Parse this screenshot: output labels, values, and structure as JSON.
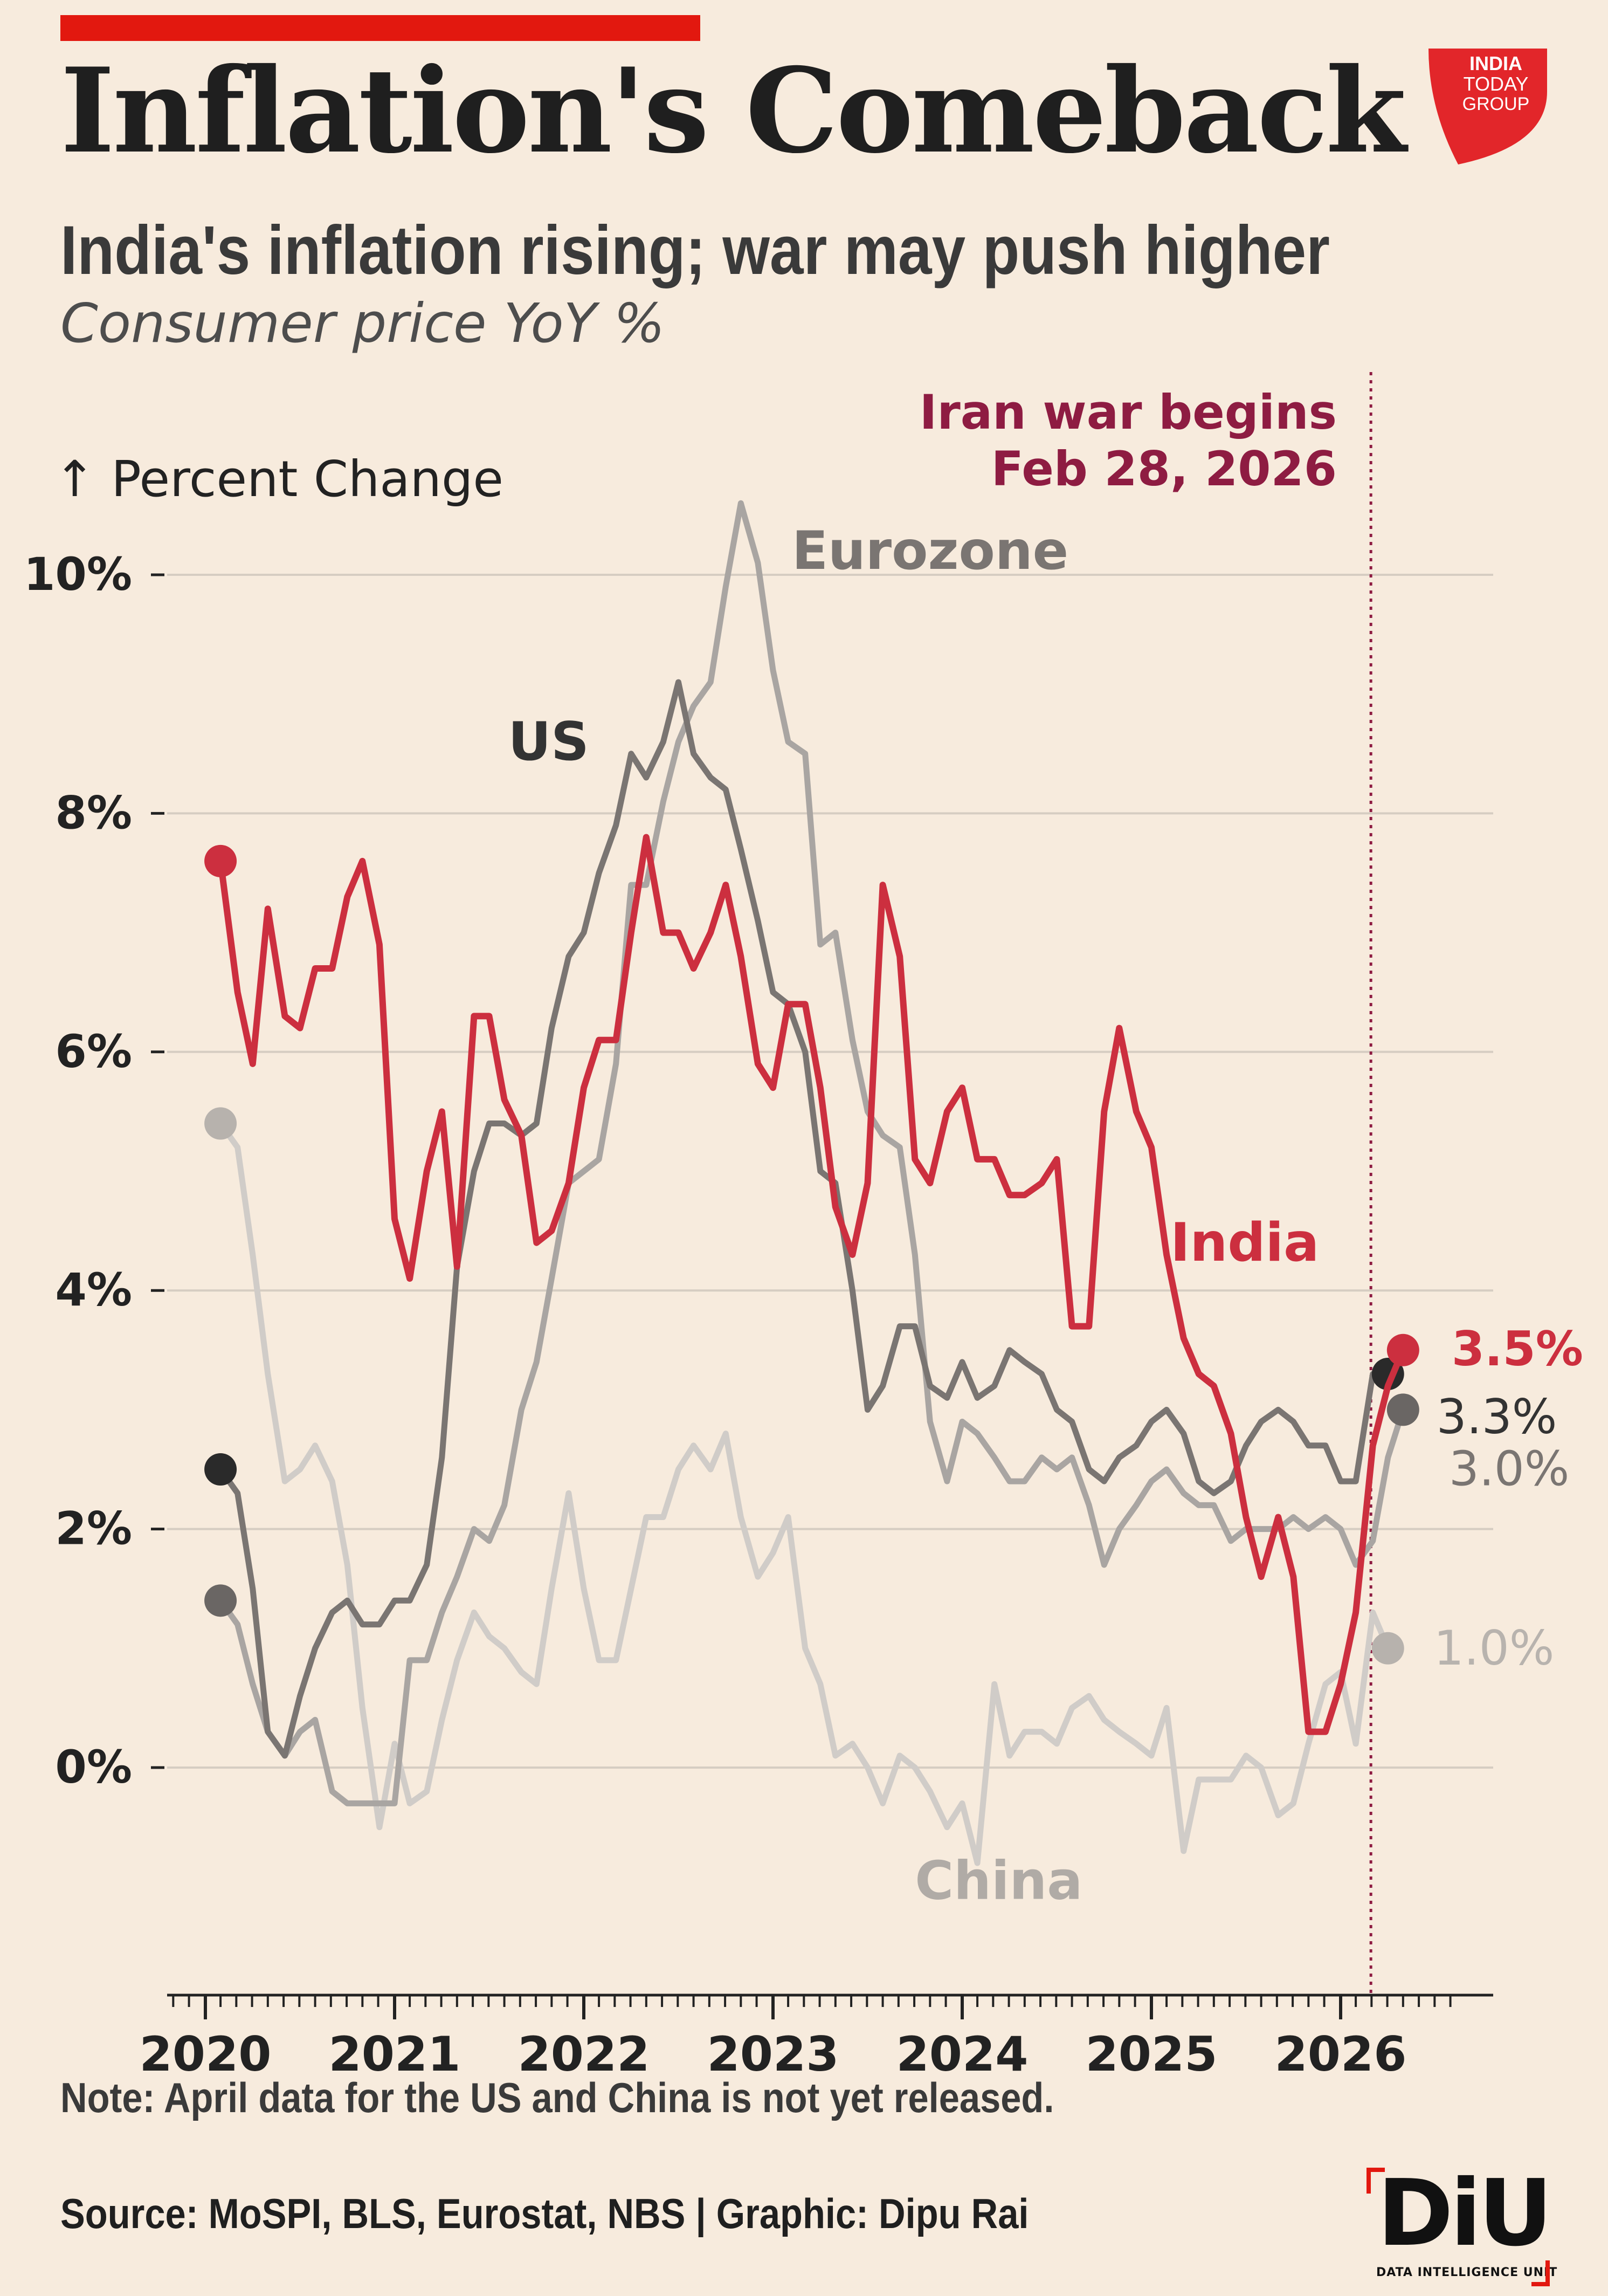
{
  "header": {
    "title": "Inflation's Comeback",
    "subtitle": "India's inflation rising; war may push higher",
    "description": "Consumer price YoY %",
    "logo_text": [
      "INDIA",
      "TODAY",
      "GROUP"
    ]
  },
  "footer": {
    "note": "Note: April data for the US and China is not yet released.",
    "source": "Source: MoSPI, BLS, Eurostat, NBS | Graphic: Dipu Rai",
    "diu_logo": "DiU",
    "diu_tagline": "DATA INTELLIGENCE UNIT"
  },
  "colors": {
    "background": "#f7ebdd",
    "accent": "#e2180f",
    "india": "#cc2f3f",
    "us": "#7a7572",
    "eurozone": "#a9a5a2",
    "china": "#d0ccc8",
    "event": "#8e1c42"
  },
  "chart_data": {
    "type": "line",
    "ylabel": "↑ Percent Change",
    "ylim": [
      -1.9,
      10.8
    ],
    "xlim": [
      2019.83,
      2026.85
    ],
    "yticks": [
      0,
      2,
      4,
      6,
      8,
      10
    ],
    "ytick_labels": [
      "0%",
      "2%",
      "4%",
      "6%",
      "8%",
      "10%"
    ],
    "xticks": [
      2020,
      2021,
      2022,
      2023,
      2024,
      2025,
      2026
    ],
    "xtick_labels": [
      "2020",
      "2021",
      "2022",
      "2023",
      "2024",
      "2025",
      "2026"
    ],
    "grid": "horizontal",
    "event": {
      "x": 2026.16,
      "label": "Iran war begins",
      "date": "Feb 28, 2026"
    },
    "series": [
      {
        "name": "China",
        "color": "#d0ccc8",
        "end_label": "1.0%",
        "x": [
          2020.08,
          2020.17,
          2020.25,
          2020.33,
          2020.42,
          2020.5,
          2020.58,
          2020.67,
          2020.75,
          2020.83,
          2020.92,
          2021.0,
          2021.08,
          2021.17,
          2021.25,
          2021.33,
          2021.42,
          2021.5,
          2021.58,
          2021.67,
          2021.75,
          2021.83,
          2021.92,
          2022.0,
          2022.08,
          2022.17,
          2022.25,
          2022.33,
          2022.42,
          2022.5,
          2022.58,
          2022.67,
          2022.75,
          2022.83,
          2022.92,
          2023.0,
          2023.08,
          2023.17,
          2023.25,
          2023.33,
          2023.42,
          2023.5,
          2023.58,
          2023.67,
          2023.75,
          2023.83,
          2023.92,
          2024.0,
          2024.08,
          2024.17,
          2024.25,
          2024.33,
          2024.42,
          2024.5,
          2024.58,
          2024.67,
          2024.75,
          2024.83,
          2024.92,
          2025.0,
          2025.08,
          2025.17,
          2025.25,
          2025.33,
          2025.42,
          2025.5,
          2025.58,
          2025.67,
          2025.75,
          2025.83,
          2025.92,
          2026.0,
          2026.08,
          2026.17,
          2026.25
        ],
        "y": [
          5.4,
          5.2,
          4.3,
          3.3,
          2.4,
          2.5,
          2.7,
          2.4,
          1.7,
          0.5,
          -0.5,
          0.2,
          -0.3,
          -0.2,
          0.4,
          0.9,
          1.3,
          1.1,
          1.0,
          0.8,
          0.7,
          1.5,
          2.3,
          1.5,
          0.9,
          0.9,
          1.5,
          2.1,
          2.1,
          2.5,
          2.7,
          2.5,
          2.8,
          2.1,
          1.6,
          1.8,
          2.1,
          1.0,
          0.7,
          0.1,
          0.2,
          0.0,
          -0.3,
          0.1,
          0.0,
          -0.2,
          -0.5,
          -0.3,
          -0.8,
          0.7,
          0.1,
          0.3,
          0.3,
          0.2,
          0.5,
          0.6,
          0.4,
          0.3,
          0.2,
          0.1,
          0.5,
          -0.7,
          -0.1,
          -0.1,
          -0.1,
          0.1,
          0.0,
          -0.4,
          -0.3,
          0.2,
          0.7,
          0.8,
          0.2,
          1.3,
          1.0
        ]
      },
      {
        "name": "Eurozone",
        "color": "#a9a5a2",
        "end_label": "3.0%",
        "x": [
          2020.08,
          2020.17,
          2020.25,
          2020.33,
          2020.42,
          2020.5,
          2020.58,
          2020.67,
          2020.75,
          2020.83,
          2020.92,
          2021.0,
          2021.08,
          2021.17,
          2021.25,
          2021.33,
          2021.42,
          2021.5,
          2021.58,
          2021.67,
          2021.75,
          2021.83,
          2021.92,
          2022.0,
          2022.08,
          2022.17,
          2022.25,
          2022.33,
          2022.42,
          2022.5,
          2022.58,
          2022.67,
          2022.75,
          2022.83,
          2022.92,
          2023.0,
          2023.08,
          2023.17,
          2023.25,
          2023.33,
          2023.42,
          2023.5,
          2023.58,
          2023.67,
          2023.75,
          2023.83,
          2023.92,
          2024.0,
          2024.08,
          2024.17,
          2024.25,
          2024.33,
          2024.42,
          2024.5,
          2024.58,
          2024.67,
          2024.75,
          2024.83,
          2024.92,
          2025.0,
          2025.08,
          2025.17,
          2025.25,
          2025.33,
          2025.42,
          2025.5,
          2025.58,
          2025.67,
          2025.75,
          2025.83,
          2025.92,
          2026.0,
          2026.08,
          2026.17,
          2026.25,
          2026.33
        ],
        "y": [
          1.4,
          1.2,
          0.7,
          0.3,
          0.1,
          0.3,
          0.4,
          -0.2,
          -0.3,
          -0.3,
          -0.3,
          -0.3,
          0.9,
          0.9,
          1.3,
          1.6,
          2.0,
          1.9,
          2.2,
          3.0,
          3.4,
          4.1,
          4.9,
          5.0,
          5.1,
          5.9,
          7.4,
          7.4,
          8.1,
          8.6,
          8.9,
          9.1,
          9.9,
          10.6,
          10.1,
          9.2,
          8.6,
          8.5,
          6.9,
          7.0,
          6.1,
          5.5,
          5.3,
          5.2,
          4.3,
          2.9,
          2.4,
          2.9,
          2.8,
          2.6,
          2.4,
          2.4,
          2.6,
          2.5,
          2.6,
          2.2,
          1.7,
          2.0,
          2.2,
          2.4,
          2.5,
          2.3,
          2.2,
          2.2,
          1.9,
          2.0,
          2.0,
          2.0,
          2.1,
          2.0,
          2.1,
          2.0,
          1.7,
          1.9,
          2.6,
          3.0
        ]
      },
      {
        "name": "US",
        "color": "#7a7572",
        "end_label": "3.3%",
        "x": [
          2020.08,
          2020.17,
          2020.25,
          2020.33,
          2020.42,
          2020.5,
          2020.58,
          2020.67,
          2020.75,
          2020.83,
          2020.92,
          2021.0,
          2021.08,
          2021.17,
          2021.25,
          2021.33,
          2021.42,
          2021.5,
          2021.58,
          2021.67,
          2021.75,
          2021.83,
          2021.92,
          2022.0,
          2022.08,
          2022.17,
          2022.25,
          2022.33,
          2022.42,
          2022.5,
          2022.58,
          2022.67,
          2022.75,
          2022.83,
          2022.92,
          2023.0,
          2023.08,
          2023.17,
          2023.25,
          2023.33,
          2023.42,
          2023.5,
          2023.58,
          2023.67,
          2023.75,
          2023.83,
          2023.92,
          2024.0,
          2024.08,
          2024.17,
          2024.25,
          2024.33,
          2024.42,
          2024.5,
          2024.58,
          2024.67,
          2024.75,
          2024.83,
          2024.92,
          2025.0,
          2025.08,
          2025.17,
          2025.25,
          2025.33,
          2025.42,
          2025.5,
          2025.58,
          2025.67,
          2025.75,
          2025.83,
          2025.92,
          2026.0,
          2026.08,
          2026.17,
          2026.25
        ],
        "y": [
          2.5,
          2.3,
          1.5,
          0.3,
          0.1,
          0.6,
          1.0,
          1.3,
          1.4,
          1.2,
          1.2,
          1.4,
          1.4,
          1.7,
          2.6,
          4.2,
          5.0,
          5.4,
          5.4,
          5.3,
          5.4,
          6.2,
          6.8,
          7.0,
          7.5,
          7.9,
          8.5,
          8.3,
          8.6,
          9.1,
          8.5,
          8.3,
          8.2,
          7.7,
          7.1,
          6.5,
          6.4,
          6.0,
          5.0,
          4.9,
          4.0,
          3.0,
          3.2,
          3.7,
          3.7,
          3.2,
          3.1,
          3.4,
          3.1,
          3.2,
          3.5,
          3.4,
          3.3,
          3.0,
          2.9,
          2.5,
          2.4,
          2.6,
          2.7,
          2.9,
          3.0,
          2.8,
          2.4,
          2.3,
          2.4,
          2.7,
          2.9,
          3.0,
          2.9,
          2.7,
          2.7,
          2.4,
          2.4,
          3.3,
          3.3
        ]
      },
      {
        "name": "India",
        "color": "#cc2f3f",
        "end_label": "3.5%",
        "x": [
          2020.08,
          2020.17,
          2020.25,
          2020.33,
          2020.42,
          2020.5,
          2020.58,
          2020.67,
          2020.75,
          2020.83,
          2020.92,
          2021.0,
          2021.08,
          2021.17,
          2021.25,
          2021.33,
          2021.42,
          2021.5,
          2021.58,
          2021.67,
          2021.75,
          2021.83,
          2021.92,
          2022.0,
          2022.08,
          2022.17,
          2022.25,
          2022.33,
          2022.42,
          2022.5,
          2022.58,
          2022.67,
          2022.75,
          2022.83,
          2022.92,
          2023.0,
          2023.08,
          2023.17,
          2023.25,
          2023.33,
          2023.42,
          2023.5,
          2023.58,
          2023.67,
          2023.75,
          2023.83,
          2023.92,
          2024.0,
          2024.08,
          2024.17,
          2024.25,
          2024.33,
          2024.42,
          2024.5,
          2024.58,
          2024.67,
          2024.75,
          2024.83,
          2024.92,
          2025.0,
          2025.08,
          2025.17,
          2025.25,
          2025.33,
          2025.42,
          2025.5,
          2025.58,
          2025.67,
          2025.75,
          2025.83,
          2025.92,
          2026.0,
          2026.08,
          2026.17,
          2026.25,
          2026.33
        ],
        "y": [
          7.6,
          6.5,
          5.9,
          7.2,
          6.3,
          6.2,
          6.7,
          6.7,
          7.3,
          7.6,
          6.9,
          4.6,
          4.1,
          5.0,
          5.5,
          4.2,
          6.3,
          6.3,
          5.6,
          5.3,
          4.4,
          4.5,
          4.9,
          5.7,
          6.1,
          6.1,
          7.0,
          7.8,
          7.0,
          7.0,
          6.7,
          7.0,
          7.4,
          6.8,
          5.9,
          5.7,
          6.4,
          6.4,
          5.7,
          4.7,
          4.3,
          4.9,
          7.4,
          6.8,
          5.1,
          4.9,
          5.5,
          5.7,
          5.1,
          5.1,
          4.8,
          4.8,
          4.9,
          5.1,
          3.7,
          3.7,
          5.5,
          6.2,
          5.5,
          5.2,
          4.3,
          3.6,
          3.3,
          3.2,
          2.8,
          2.1,
          1.6,
          2.1,
          1.6,
          0.3,
          0.3,
          0.7,
          1.3,
          2.7,
          3.2,
          3.5
        ]
      }
    ],
    "series_labels": [
      {
        "name": "Eurozone",
        "x": 2023.1,
        "y": 10.05
      },
      {
        "name": "US",
        "x": 2021.6,
        "y": 8.45
      },
      {
        "name": "India",
        "x": 2025.1,
        "y": 4.25
      },
      {
        "name": "China",
        "x": 2023.75,
        "y": -1.1
      }
    ]
  }
}
